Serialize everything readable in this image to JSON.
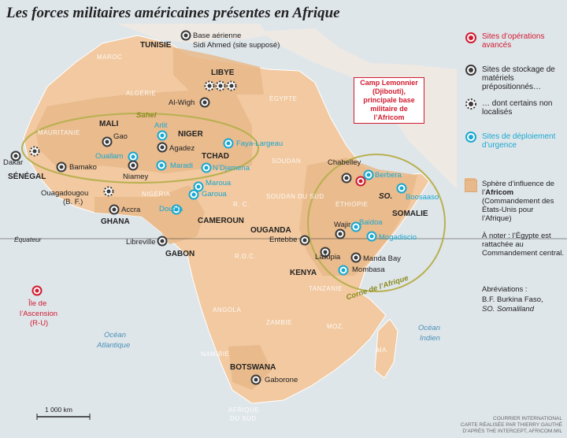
{
  "title": "Les forces militaires américaines présentes en Afrique",
  "legend": {
    "ops": "Sites d’opérations avancés",
    "storage": "Sites de stockage de matériels prépositionnés…",
    "unlocated": "… dont certains non localisés",
    "deploy": "Sites de déploiement d’urgence",
    "sphere_1": "Sphère d’influence de l’",
    "sphere_bold": "Africom",
    "sphere_2": "(Commandement des États-Unis pour l’Afrique)",
    "sphere_note": "À noter : l’Égypte est rattachée au Commandement central.",
    "abbr_title": "Abréviations :",
    "abbr_bf": "B.F. Burkina Faso,",
    "abbr_so": "SO. Somaliland"
  },
  "callout": "Camp Lemonnier (Djibouti), principale base militaire de l’Africom",
  "labels": {
    "tunisie": "TUNISIE",
    "base_tn_1": "Base aérienne",
    "base_tn_2": "Sidi Ahmed (site supposé)",
    "libye": "LIBYE",
    "maroc": "MAROC",
    "algerie": "ALGÉRIE",
    "egypte": "ÉGYPTE",
    "mauritanie": "MAURITANIE",
    "mali": "MALI",
    "niger": "NIGER",
    "tchad": "TCHAD",
    "soudan": "SOUDAN",
    "sahel": "Sahel",
    "al_wigh": "Al-Wigh",
    "arlit": "Arlit",
    "gao": "Gao",
    "agadez": "Agadez",
    "faya": "Faya-Largeau",
    "dakar": "Dakar",
    "senegal": "SÉNÉGAL",
    "bamako": "Bamako",
    "ouallam": "Ouallam",
    "maradi": "Maradi",
    "ndjamena": "N’Djamena",
    "niamey": "Niamey",
    "ouaga_1": "Ouagadougou",
    "ouaga_2": "(B. F.)",
    "nigeria": "NIGERIA",
    "maroua": "Maroua",
    "garoua": "Garoua",
    "douala": "Douala",
    "accra": "Accra",
    "ghana": "GHANA",
    "cameroun": "CAMEROUN",
    "rca": "R. C.",
    "soudan_sud": "SOUDAN DU SUD",
    "ethiopie": "ÉTHIOPIE",
    "chabelley": "Chabelley",
    "berbera": "Berbera",
    "so": "SO.",
    "boosaaso": "Boosaaso",
    "somalie": "SOMALIE",
    "baidoa": "Baidoa",
    "wajir": "Wajir",
    "mogadiscio": "Mogadiscio",
    "ouganda": "OUGANDA",
    "entebbe": "Entebbe",
    "laikipia": "Laikipia",
    "manda": "Manda Bay",
    "mombasa": "Mombasa",
    "kenya": "KENYA",
    "tanzanie": "TANZANIE",
    "corne": "Corne de l’Afrique",
    "equateur": "Équateur",
    "libreville": "Libreville",
    "gabon": "GABON",
    "rdc": "R.D.C.",
    "angola": "ANGOLA",
    "zambie": "ZAMBIE",
    "namibie": "NAMIBIE",
    "mozambique": "MOZ.",
    "mada": "MA.",
    "botswana": "BOTSWANA",
    "gaborone": "Gaborone",
    "afrique_sud_1": "AFRIQUE",
    "afrique_sud_2": "DU SUD",
    "ascension_1": "Île de",
    "ascension_2": "l’Ascension",
    "ascension_3": "(R-U)",
    "ocean_atl_1": "Océan",
    "ocean_atl_2": "Atlantique",
    "ocean_ind_1": "Océan",
    "ocean_ind_2": "Indien",
    "scale": "1 000 km"
  },
  "credit": [
    "COURRIER INTERNATIONAL",
    "CARTE RÉALISÉE PAR THIERRY GAUTHÉ",
    "D’APRÈS THE INTERCEPT, AFRICOM.MIL"
  ],
  "colors": {
    "ops": "#d11b30",
    "storage": "#3a3a3a",
    "deploy": "#1aa7cf",
    "land": "#f2c9a0",
    "sphere": "#e8b98a",
    "ellipse": "#b8b050"
  }
}
